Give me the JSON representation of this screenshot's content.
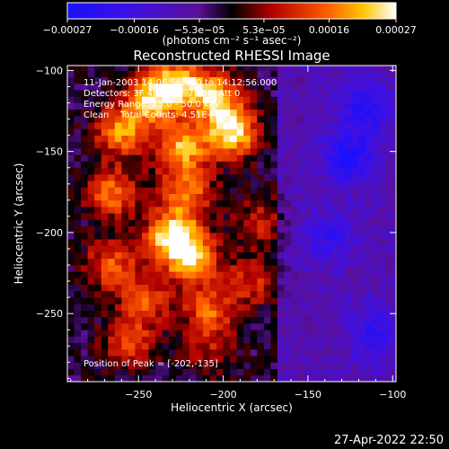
{
  "chart_data": {
    "type": "heatmap",
    "title": "Reconstructed RHESSI Image",
    "xlabel": "Heliocentric X (arcsec)",
    "ylabel": "Heliocentric Y (arcsec)",
    "xlim": [
      -292,
      -98
    ],
    "ylim": [
      -292,
      -97
    ],
    "x_ticks": [
      -250,
      -200,
      -150,
      -100
    ],
    "x_tick_labels": [
      "−250",
      "−200",
      "−150",
      "−100"
    ],
    "y_ticks": [
      -100,
      -150,
      -200,
      -250
    ],
    "y_tick_labels": [
      "−100",
      "−150",
      "−200",
      "−250"
    ],
    "colorbar": {
      "min": -0.00027,
      "max": 0.00027,
      "tick_values": [
        -0.00027,
        -0.00016,
        -5.3e-05,
        5.3e-05,
        0.00016,
        0.00027
      ],
      "tick_labels": [
        "−0.00027",
        "−0.00016",
        "−5.3e−05",
        "5.3e−05",
        "0.00016",
        "0.00027"
      ],
      "units_label": "(photons cm⁻² s⁻¹ asec⁻²)"
    },
    "annotations": {
      "time_range": "11-Jan-2003 14:06:56.000 to 14:12:56.000",
      "detectors": "Detectors: 3F 4F 5F 6F 7F 8F, Att 0",
      "energy_range": "Energy Range: 25.0 - 50.0 keV",
      "clean": "Clean    Total Counts: 4.51E+03",
      "peak": "Position of Peak = [-202,-135]"
    },
    "emission_sources": [
      {
        "x": -245,
        "y": -120,
        "value": 0.00022
      },
      {
        "x": -228,
        "y": -110,
        "value": 0.00024
      },
      {
        "x": -206,
        "y": -118,
        "value": 0.00021
      },
      {
        "x": -262,
        "y": -140,
        "value": 0.0002
      },
      {
        "x": -226,
        "y": -150,
        "value": 0.00022
      },
      {
        "x": -197,
        "y": -140,
        "value": 0.00027
      },
      {
        "x": -224,
        "y": -178,
        "value": 0.00019
      },
      {
        "x": -267,
        "y": -178,
        "value": 0.00018
      },
      {
        "x": -232,
        "y": -205,
        "value": 0.00027
      },
      {
        "x": -220,
        "y": -218,
        "value": 0.00022
      },
      {
        "x": -268,
        "y": -222,
        "value": 0.00016
      },
      {
        "x": -247,
        "y": -244,
        "value": 0.00015
      },
      {
        "x": -210,
        "y": -250,
        "value": 0.00016
      },
      {
        "x": -180,
        "y": -195,
        "value": 0.0001
      },
      {
        "x": -185,
        "y": -232,
        "value": 0.00012
      },
      {
        "x": -258,
        "y": -270,
        "value": 0.00014
      },
      {
        "x": -210,
        "y": -275,
        "value": 8e-05
      }
    ],
    "negative_regions": [
      {
        "x": -128,
        "y": -155,
        "value": -0.00016
      },
      {
        "x": -118,
        "y": -125,
        "value": -0.00014
      },
      {
        "x": -140,
        "y": -205,
        "value": -0.0001
      },
      {
        "x": -112,
        "y": -265,
        "value": -0.00012
      }
    ]
  },
  "timestamp": "27-Apr-2022 22:50"
}
